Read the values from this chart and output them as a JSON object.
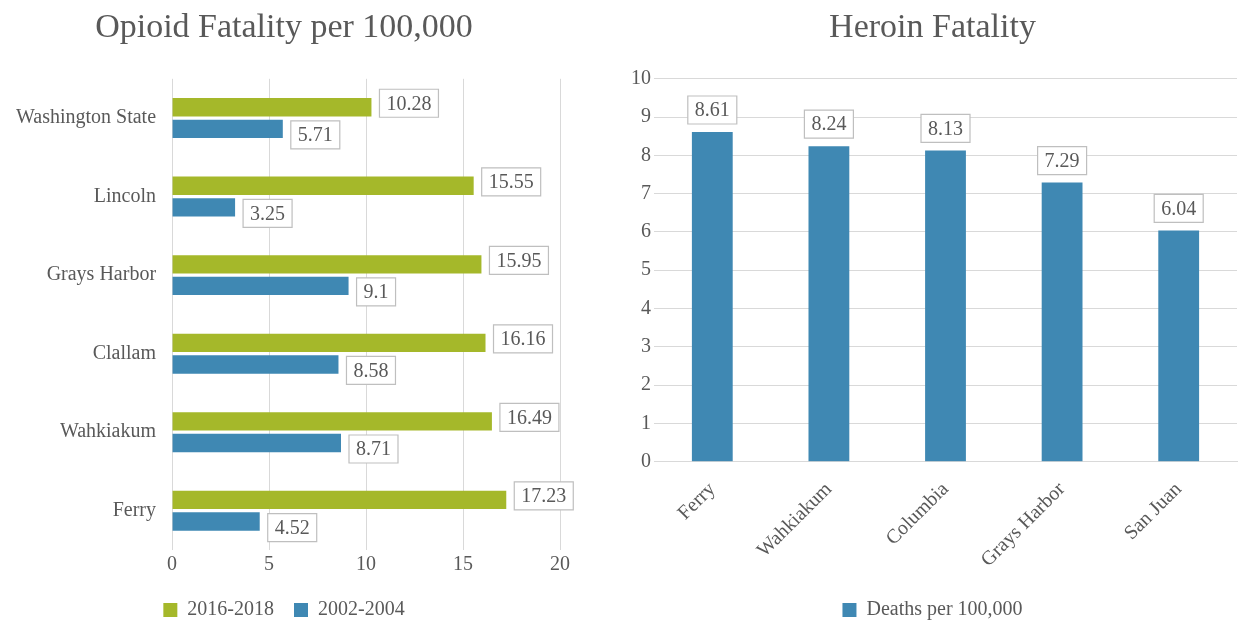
{
  "chart_data": [
    {
      "type": "bar",
      "title": "Opioid Fatality per 100,000",
      "orientation": "horizontal",
      "categories": [
        "Washington State",
        "Lincoln",
        "Grays Harbor",
        "Clallam",
        "Wahkiakum",
        "Ferry"
      ],
      "series": [
        {
          "name": "2016-2018",
          "color": "#a5b82a",
          "values": [
            10.28,
            15.55,
            15.95,
            16.16,
            16.49,
            17.23
          ]
        },
        {
          "name": "2002-2004",
          "color": "#3f88b3",
          "values": [
            5.71,
            3.25,
            9.1,
            8.58,
            8.71,
            4.52
          ]
        }
      ],
      "xlim": [
        0,
        20
      ],
      "xticks": [
        0,
        5,
        10,
        15,
        20
      ],
      "grid": "x",
      "legend": "bottom",
      "data_labels": true
    },
    {
      "type": "bar",
      "title": "Heroin Fatality",
      "categories": [
        "Ferry",
        "Wahkiakum",
        "Columbia",
        "Grays Harbor",
        "San Juan"
      ],
      "series": [
        {
          "name": "Deaths per 100,000",
          "color": "#3f88b3",
          "values": [
            8.61,
            8.24,
            8.13,
            7.29,
            6.04
          ]
        }
      ],
      "ylim": [
        0,
        10
      ],
      "yticks": [
        0,
        1,
        2,
        3,
        4,
        5,
        6,
        7,
        8,
        9,
        10
      ],
      "grid": "y",
      "legend": "bottom",
      "data_labels": true
    }
  ]
}
